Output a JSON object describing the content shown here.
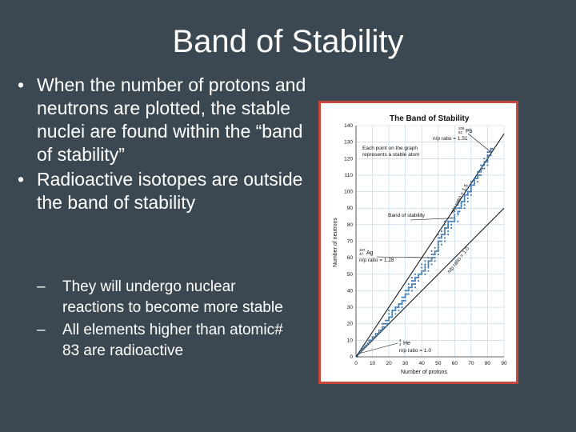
{
  "slide": {
    "title": "Band of Stability",
    "bullets": [
      "When the number of protons and neutrons are plotted, the stable nuclei are found within the “band of stability”",
      "Radioactive isotopes are outside the band of stability"
    ],
    "subbullets": [
      "They will undergo nuclear reactions to become more stable",
      "All elements higher than atomic# 83 are radioactive"
    ]
  },
  "colors": {
    "background": "#3b4852",
    "text": "#ffffff",
    "figure_border": "#c9463d",
    "points": "#2f6fa8"
  },
  "chart_data": {
    "type": "scatter",
    "title": "The Band of Stability",
    "xlabel": "Number of protons",
    "ylabel": "Number of neutrons",
    "xlim": [
      0,
      90
    ],
    "ylim": [
      0,
      140
    ],
    "xticks": [
      0,
      10,
      20,
      30,
      40,
      50,
      60,
      70,
      80,
      90
    ],
    "yticks": [
      0,
      10,
      20,
      30,
      40,
      50,
      60,
      70,
      80,
      90,
      100,
      110,
      120,
      130,
      140
    ],
    "grid": true,
    "annotations": {
      "points_note": "Each point on the graph represents a stable atom",
      "band_label": "Band of stability",
      "line_15_label": "n/p ratio = 1.5",
      "line_10_label": "n/p ratio = 1.0",
      "pb": {
        "symbol": "Pb",
        "mass": "206",
        "atomic": "82",
        "ratio": "n/p ratio = 1.51"
      },
      "ag": {
        "symbol": "Ag",
        "mass": "107",
        "atomic": "47",
        "ratio": "n/p ratio = 1.28"
      },
      "he": {
        "symbol": "He",
        "mass": "4",
        "atomic": "2",
        "ratio": "n/p ratio = 1.0"
      }
    },
    "reference_lines": [
      {
        "name": "n/p ratio = 1.5",
        "x": [
          0,
          90
        ],
        "y": [
          0,
          135
        ]
      },
      {
        "name": "n/p ratio = 1.0",
        "x": [
          0,
          90
        ],
        "y": [
          0,
          90
        ]
      }
    ],
    "stable_points": [
      [
        1,
        0
      ],
      [
        2,
        2
      ],
      [
        3,
        3
      ],
      [
        3,
        4
      ],
      [
        4,
        5
      ],
      [
        5,
        5
      ],
      [
        5,
        6
      ],
      [
        6,
        6
      ],
      [
        6,
        7
      ],
      [
        7,
        7
      ],
      [
        7,
        8
      ],
      [
        8,
        8
      ],
      [
        8,
        9
      ],
      [
        8,
        10
      ],
      [
        9,
        10
      ],
      [
        10,
        10
      ],
      [
        10,
        11
      ],
      [
        10,
        12
      ],
      [
        11,
        12
      ],
      [
        12,
        12
      ],
      [
        12,
        13
      ],
      [
        12,
        14
      ],
      [
        13,
        14
      ],
      [
        14,
        14
      ],
      [
        14,
        15
      ],
      [
        14,
        16
      ],
      [
        15,
        16
      ],
      [
        16,
        16
      ],
      [
        16,
        17
      ],
      [
        16,
        18
      ],
      [
        16,
        20
      ],
      [
        17,
        18
      ],
      [
        17,
        20
      ],
      [
        18,
        18
      ],
      [
        18,
        20
      ],
      [
        18,
        22
      ],
      [
        19,
        20
      ],
      [
        19,
        22
      ],
      [
        20,
        20
      ],
      [
        20,
        22
      ],
      [
        20,
        23
      ],
      [
        20,
        24
      ],
      [
        20,
        26
      ],
      [
        20,
        28
      ],
      [
        21,
        24
      ],
      [
        22,
        24
      ],
      [
        22,
        25
      ],
      [
        22,
        26
      ],
      [
        22,
        27
      ],
      [
        22,
        28
      ],
      [
        23,
        28
      ],
      [
        24,
        26
      ],
      [
        24,
        28
      ],
      [
        24,
        29
      ],
      [
        24,
        30
      ],
      [
        25,
        30
      ],
      [
        26,
        28
      ],
      [
        26,
        30
      ],
      [
        26,
        31
      ],
      [
        26,
        32
      ],
      [
        27,
        32
      ],
      [
        28,
        30
      ],
      [
        28,
        32
      ],
      [
        28,
        33
      ],
      [
        28,
        34
      ],
      [
        28,
        36
      ],
      [
        29,
        34
      ],
      [
        29,
        36
      ],
      [
        30,
        34
      ],
      [
        30,
        36
      ],
      [
        30,
        37
      ],
      [
        30,
        38
      ],
      [
        30,
        40
      ],
      [
        31,
        38
      ],
      [
        31,
        40
      ],
      [
        32,
        38
      ],
      [
        32,
        40
      ],
      [
        32,
        41
      ],
      [
        32,
        42
      ],
      [
        32,
        44
      ],
      [
        33,
        42
      ],
      [
        34,
        40
      ],
      [
        34,
        42
      ],
      [
        34,
        43
      ],
      [
        34,
        44
      ],
      [
        34,
        46
      ],
      [
        34,
        48
      ],
      [
        35,
        44
      ],
      [
        35,
        46
      ],
      [
        36,
        42
      ],
      [
        36,
        44
      ],
      [
        36,
        46
      ],
      [
        36,
        47
      ],
      [
        36,
        48
      ],
      [
        36,
        50
      ],
      [
        37,
        48
      ],
      [
        38,
        46
      ],
      [
        38,
        48
      ],
      [
        38,
        49
      ],
      [
        38,
        50
      ],
      [
        39,
        50
      ],
      [
        40,
        50
      ],
      [
        40,
        51
      ],
      [
        40,
        52
      ],
      [
        40,
        54
      ],
      [
        40,
        56
      ],
      [
        41,
        52
      ],
      [
        42,
        50
      ],
      [
        42,
        52
      ],
      [
        42,
        53
      ],
      [
        42,
        54
      ],
      [
        42,
        55
      ],
      [
        42,
        56
      ],
      [
        42,
        58
      ],
      [
        44,
        52
      ],
      [
        44,
        54
      ],
      [
        44,
        55
      ],
      [
        44,
        56
      ],
      [
        44,
        57
      ],
      [
        44,
        58
      ],
      [
        44,
        60
      ],
      [
        45,
        58
      ],
      [
        46,
        56
      ],
      [
        46,
        58
      ],
      [
        46,
        59
      ],
      [
        46,
        60
      ],
      [
        46,
        62
      ],
      [
        46,
        64
      ],
      [
        47,
        60
      ],
      [
        47,
        62
      ],
      [
        48,
        58
      ],
      [
        48,
        60
      ],
      [
        48,
        62
      ],
      [
        48,
        63
      ],
      [
        48,
        64
      ],
      [
        48,
        66
      ],
      [
        49,
        64
      ],
      [
        50,
        62
      ],
      [
        50,
        64
      ],
      [
        50,
        65
      ],
      [
        50,
        66
      ],
      [
        50,
        67
      ],
      [
        50,
        68
      ],
      [
        50,
        69
      ],
      [
        50,
        70
      ],
      [
        50,
        72
      ],
      [
        50,
        74
      ],
      [
        51,
        70
      ],
      [
        51,
        72
      ],
      [
        52,
        68
      ],
      [
        52,
        70
      ],
      [
        52,
        72
      ],
      [
        52,
        73
      ],
      [
        52,
        74
      ],
      [
        52,
        76
      ],
      [
        52,
        78
      ],
      [
        53,
        74
      ],
      [
        54,
        70
      ],
      [
        54,
        72
      ],
      [
        54,
        74
      ],
      [
        54,
        75
      ],
      [
        54,
        76
      ],
      [
        54,
        77
      ],
      [
        54,
        78
      ],
      [
        54,
        80
      ],
      [
        54,
        82
      ],
      [
        55,
        78
      ],
      [
        56,
        74
      ],
      [
        56,
        76
      ],
      [
        56,
        78
      ],
      [
        56,
        79
      ],
      [
        56,
        80
      ],
      [
        56,
        81
      ],
      [
        56,
        82
      ],
      [
        57,
        82
      ],
      [
        58,
        78
      ],
      [
        58,
        80
      ],
      [
        58,
        82
      ],
      [
        58,
        84
      ],
      [
        59,
        82
      ],
      [
        60,
        82
      ],
      [
        60,
        83
      ],
      [
        60,
        84
      ],
      [
        60,
        85
      ],
      [
        60,
        86
      ],
      [
        60,
        88
      ],
      [
        60,
        90
      ],
      [
        62,
        82
      ],
      [
        62,
        86
      ],
      [
        62,
        87
      ],
      [
        62,
        88
      ],
      [
        62,
        90
      ],
      [
        62,
        92
      ],
      [
        63,
        88
      ],
      [
        63,
        90
      ],
      [
        64,
        90
      ],
      [
        64,
        91
      ],
      [
        64,
        92
      ],
      [
        64,
        93
      ],
      [
        64,
        94
      ],
      [
        64,
        96
      ],
      [
        65,
        94
      ],
      [
        66,
        90
      ],
      [
        66,
        92
      ],
      [
        66,
        94
      ],
      [
        66,
        95
      ],
      [
        66,
        96
      ],
      [
        66,
        97
      ],
      [
        66,
        98
      ],
      [
        67,
        98
      ],
      [
        68,
        94
      ],
      [
        68,
        96
      ],
      [
        68,
        98
      ],
      [
        68,
        99
      ],
      [
        68,
        100
      ],
      [
        68,
        102
      ],
      [
        69,
        100
      ],
      [
        70,
        98
      ],
      [
        70,
        100
      ],
      [
        70,
        101
      ],
      [
        70,
        102
      ],
      [
        70,
        103
      ],
      [
        70,
        104
      ],
      [
        70,
        106
      ],
      [
        71,
        104
      ],
      [
        72,
        104
      ],
      [
        72,
        105
      ],
      [
        72,
        106
      ],
      [
        72,
        107
      ],
      [
        72,
        108
      ],
      [
        73,
        108
      ],
      [
        74,
        106
      ],
      [
        74,
        108
      ],
      [
        74,
        109
      ],
      [
        74,
        110
      ],
      [
        74,
        112
      ],
      [
        75,
        110
      ],
      [
        75,
        112
      ],
      [
        76,
        110
      ],
      [
        76,
        112
      ],
      [
        76,
        113
      ],
      [
        76,
        114
      ],
      [
        76,
        116
      ],
      [
        77,
        114
      ],
      [
        77,
        116
      ],
      [
        78,
        114
      ],
      [
        78,
        116
      ],
      [
        78,
        117
      ],
      [
        78,
        118
      ],
      [
        78,
        120
      ],
      [
        79,
        118
      ],
      [
        80,
        116
      ],
      [
        80,
        118
      ],
      [
        80,
        119
      ],
      [
        80,
        120
      ],
      [
        80,
        121
      ],
      [
        80,
        122
      ],
      [
        80,
        124
      ],
      [
        81,
        122
      ],
      [
        81,
        124
      ],
      [
        82,
        122
      ],
      [
        82,
        124
      ],
      [
        82,
        125
      ],
      [
        82,
        126
      ],
      [
        83,
        126
      ]
    ]
  }
}
